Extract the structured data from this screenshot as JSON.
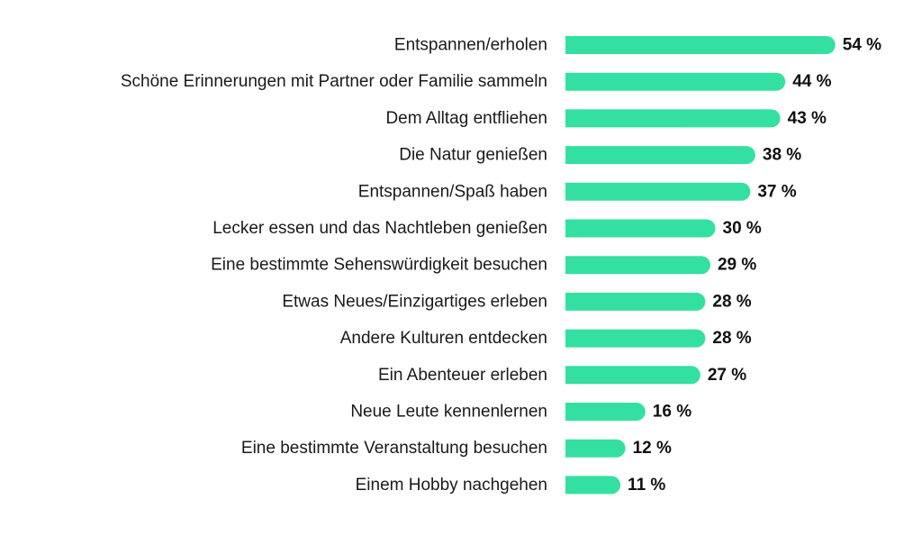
{
  "chart_data": {
    "type": "bar",
    "orientation": "horizontal",
    "categories": [
      "Entspannen/erholen",
      "Schöne Erinnerungen mit Partner oder Familie sammeln",
      "Dem Alltag entfliehen",
      "Die Natur genießen",
      "Entspannen/Spaß haben",
      "Lecker essen und das Nachtleben genießen",
      "Eine bestimmte Sehenswürdigkeit besuchen",
      "Etwas Neues/Einzigartiges erleben",
      "Andere Kulturen entdecken",
      "Ein Abenteuer erleben",
      "Neue Leute kennenlernen",
      "Eine bestimmte Veranstaltung besuchen",
      "Einem Hobby nachgehen"
    ],
    "values": [
      54,
      44,
      43,
      38,
      37,
      30,
      29,
      28,
      28,
      27,
      16,
      12,
      11
    ],
    "value_labels": [
      "54 %",
      "44 %",
      "43 %",
      "38 %",
      "37 %",
      "30 %",
      "29 %",
      "28 %",
      "28 %",
      "27 %",
      "16 %",
      "12 %",
      "11 %"
    ],
    "bar_color": "#34e0a1",
    "grid": false,
    "legend": false
  }
}
